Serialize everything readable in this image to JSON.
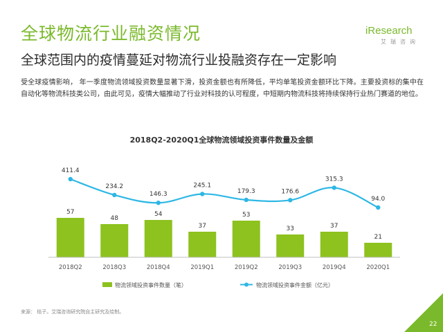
{
  "header": {
    "title": "全球物流行业融资情况",
    "subtitle": "全球范围内的疫情蔓延对物流行业投融资存在一定影响"
  },
  "logo": {
    "text": "iResearch",
    "sub": "艾瑞咨询"
  },
  "body": {
    "paragraph": "受全球疫情影响，      年一季度物流领域投资数量显著下滑，投资金额也有所降低，平均单笔投资金额环比下降。主要投资标的集中在自动化等物流科技类公司，由此可见，疫情大幅推动了行业对科技的认可程度，中短期内物流科技将持续保持行业热门赛道的地位。"
  },
  "footer": {
    "source": "来源：  桔子。艾瑞咨询研究院自主研究及绘制。",
    "page_number": "22"
  },
  "colors": {
    "accent": "#7ab92b",
    "bar": "#8dc21f",
    "line": "#2db7e5"
  },
  "chart_data": {
    "type": "bar",
    "title": "2018Q2-2020Q1全球物流领域投资事件数量及金额",
    "categories": [
      "2018Q2",
      "2018Q3",
      "2018Q4",
      "2019Q1",
      "2019Q2",
      "2019Q3",
      "2019Q4",
      "2020Q1"
    ],
    "series": [
      {
        "name": "物流领域投资事件数量（笔）",
        "type": "bar",
        "values": [
          57,
          48,
          54,
          37,
          53,
          33,
          37,
          21
        ]
      },
      {
        "name": "物流领域投资事件金额（亿元）",
        "type": "line",
        "values": [
          411.4,
          234.2,
          146.3,
          245.1,
          179.3,
          176.6,
          315.3,
          94.0
        ]
      }
    ],
    "legend_position": "bottom",
    "grid": false
  }
}
